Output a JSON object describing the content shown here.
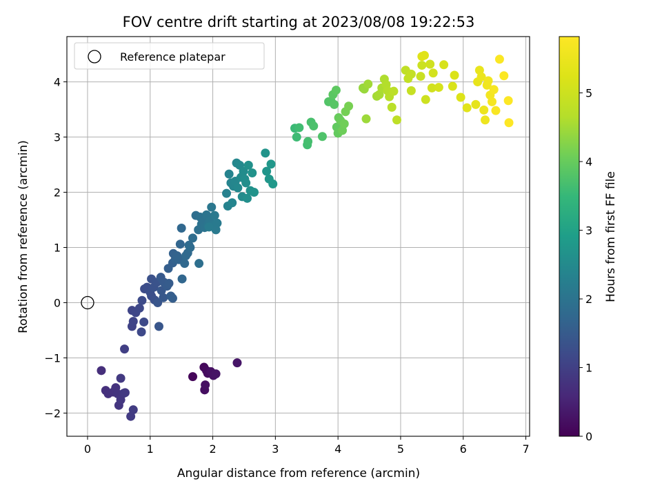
{
  "chart_data": {
    "type": "scatter",
    "title": "FOV centre drift starting at 2023/08/08 19:22:53",
    "xlabel": "Angular distance from reference (arcmin)",
    "ylabel": "Rotation from reference (arcmin)",
    "colorbar_label": "Hours from first FF file",
    "xlim": [
      -0.33,
      7.06
    ],
    "ylim": [
      -2.42,
      4.82
    ],
    "x_ticks": [
      0,
      1,
      2,
      3,
      4,
      5,
      6,
      7
    ],
    "y_ticks": [
      -2,
      -1,
      0,
      1,
      2,
      3,
      4
    ],
    "colorbar_ticks": [
      0,
      1,
      2,
      3,
      4,
      5
    ],
    "colorbar_range": [
      0,
      5.82
    ],
    "colormap": "viridis",
    "grid": true,
    "legend": {
      "placement": "top-left",
      "entries": [
        "Reference platepar"
      ]
    },
    "reference_point": {
      "x": 0,
      "y": 0
    },
    "points": [
      [
        1.68,
        -1.34,
        0.08
      ],
      [
        1.86,
        -1.17,
        0.12
      ],
      [
        1.9,
        -1.23,
        0.15
      ],
      [
        1.92,
        -1.28,
        0.18
      ],
      [
        1.87,
        -1.58,
        0.2
      ],
      [
        1.88,
        -1.49,
        0.22
      ],
      [
        1.97,
        -1.25,
        0.24
      ],
      [
        2.01,
        -1.32,
        0.26
      ],
      [
        2.05,
        -1.29,
        0.28
      ],
      [
        2.39,
        -1.09,
        0.3
      ],
      [
        0.22,
        -1.23,
        0.7
      ],
      [
        0.29,
        -1.59,
        0.72
      ],
      [
        0.33,
        -1.65,
        0.74
      ],
      [
        0.41,
        -1.62,
        0.76
      ],
      [
        0.45,
        -1.54,
        0.78
      ],
      [
        0.48,
        -1.65,
        0.8
      ],
      [
        0.5,
        -1.86,
        0.82
      ],
      [
        0.53,
        -1.76,
        0.84
      ],
      [
        0.58,
        -1.64,
        0.86
      ],
      [
        0.6,
        -1.63,
        0.88
      ],
      [
        0.53,
        -1.37,
        0.9
      ],
      [
        0.69,
        -2.06,
        0.92
      ],
      [
        0.73,
        -1.94,
        0.94
      ],
      [
        0.59,
        -0.84,
        0.98
      ],
      [
        0.71,
        -0.43,
        1.05
      ],
      [
        0.73,
        -0.34,
        1.08
      ],
      [
        0.71,
        -0.14,
        1.1
      ],
      [
        0.77,
        -0.18,
        1.12
      ],
      [
        0.83,
        -0.1,
        1.14
      ],
      [
        0.86,
        -0.53,
        1.16
      ],
      [
        0.9,
        -0.35,
        1.18
      ],
      [
        0.87,
        0.04,
        1.2
      ],
      [
        0.91,
        0.25,
        1.22
      ],
      [
        0.95,
        0.28,
        1.24
      ],
      [
        1.02,
        0.12,
        1.26
      ],
      [
        1.0,
        0.19,
        1.28
      ],
      [
        1.07,
        0.05,
        1.3
      ],
      [
        1.02,
        0.43,
        1.32
      ],
      [
        1.06,
        0.28,
        1.34
      ],
      [
        1.11,
        0.37,
        1.36
      ],
      [
        1.12,
        0.0,
        1.38
      ],
      [
        1.14,
        -0.43,
        1.4
      ],
      [
        1.18,
        0.22,
        1.42
      ],
      [
        1.21,
        0.09,
        1.44
      ],
      [
        1.17,
        0.46,
        1.46
      ],
      [
        1.22,
        0.37,
        1.48
      ],
      [
        1.27,
        0.3,
        1.5
      ],
      [
        1.3,
        0.35,
        1.52
      ],
      [
        1.33,
        0.12,
        1.54
      ],
      [
        1.36,
        0.08,
        1.56
      ],
      [
        1.29,
        0.62,
        1.58
      ],
      [
        1.36,
        0.72,
        1.6
      ],
      [
        1.37,
        0.89,
        1.62
      ],
      [
        1.4,
        0.78,
        1.64
      ],
      [
        1.43,
        0.85,
        1.66
      ],
      [
        1.46,
        0.78,
        1.68
      ],
      [
        1.48,
        1.06,
        1.7
      ],
      [
        1.51,
        0.43,
        1.72
      ],
      [
        1.5,
        1.35,
        1.74
      ],
      [
        1.55,
        0.71,
        1.76
      ],
      [
        1.57,
        0.85,
        1.78
      ],
      [
        1.6,
        0.9,
        1.8
      ],
      [
        1.62,
        1.04,
        1.82
      ],
      [
        1.64,
        1.0,
        1.84
      ],
      [
        1.68,
        1.17,
        1.86
      ],
      [
        1.73,
        1.58,
        1.88
      ],
      [
        1.78,
        0.71,
        1.9
      ],
      [
        1.77,
        1.32,
        1.92
      ],
      [
        1.8,
        1.55,
        1.94
      ],
      [
        1.82,
        1.42,
        1.96
      ],
      [
        1.84,
        1.46,
        1.98
      ],
      [
        1.87,
        1.36,
        2.0
      ],
      [
        1.9,
        1.59,
        2.02
      ],
      [
        1.92,
        1.4,
        2.04
      ],
      [
        1.95,
        1.48,
        2.06
      ],
      [
        1.98,
        1.73,
        2.08
      ],
      [
        2.0,
        1.41,
        2.1
      ],
      [
        2.03,
        1.58,
        2.12
      ],
      [
        2.05,
        1.32,
        2.14
      ],
      [
        2.07,
        1.44,
        2.16
      ],
      [
        1.94,
        1.37,
        2.18
      ],
      [
        2.22,
        1.98,
        2.3
      ],
      [
        2.24,
        1.75,
        2.32
      ],
      [
        2.26,
        2.33,
        2.34
      ],
      [
        2.29,
        2.17,
        2.36
      ],
      [
        2.31,
        1.81,
        2.38
      ],
      [
        2.33,
        2.11,
        2.4
      ],
      [
        2.36,
        2.2,
        2.42
      ],
      [
        2.38,
        2.53,
        2.44
      ],
      [
        2.4,
        2.08,
        2.46
      ],
      [
        2.43,
        2.49,
        2.48
      ],
      [
        2.45,
        2.27,
        2.5
      ],
      [
        2.47,
        1.92,
        2.52
      ],
      [
        2.49,
        2.38,
        2.54
      ],
      [
        2.51,
        2.24,
        2.56
      ],
      [
        2.53,
        2.17,
        2.58
      ],
      [
        2.55,
        1.89,
        2.6
      ],
      [
        2.57,
        2.49,
        2.62
      ],
      [
        2.6,
        2.03,
        2.64
      ],
      [
        2.63,
        2.35,
        2.66
      ],
      [
        2.66,
        2.0,
        2.68
      ],
      [
        2.84,
        2.71,
        2.7
      ],
      [
        2.86,
        2.38,
        2.72
      ],
      [
        2.9,
        2.24,
        2.74
      ],
      [
        2.93,
        2.51,
        2.76
      ],
      [
        2.96,
        2.15,
        2.78
      ],
      [
        3.31,
        3.16,
        3.55
      ],
      [
        3.34,
        3.0,
        3.58
      ],
      [
        3.38,
        3.17,
        3.61
      ],
      [
        3.51,
        2.86,
        3.64
      ],
      [
        3.52,
        2.92,
        3.67
      ],
      [
        3.57,
        3.27,
        3.7
      ],
      [
        3.61,
        3.2,
        3.73
      ],
      [
        3.75,
        3.01,
        3.76
      ],
      [
        3.85,
        3.64,
        3.79
      ],
      [
        3.89,
        3.65,
        3.82
      ],
      [
        3.94,
        3.59,
        3.85
      ],
      [
        3.92,
        3.77,
        3.88
      ],
      [
        3.97,
        3.85,
        3.91
      ],
      [
        3.98,
        3.18,
        3.94
      ],
      [
        4.0,
        3.07,
        3.97
      ],
      [
        4.01,
        3.35,
        4.0
      ],
      [
        4.04,
        3.3,
        4.03
      ],
      [
        4.07,
        3.12,
        4.06
      ],
      [
        4.1,
        3.24,
        4.09
      ],
      [
        4.12,
        3.46,
        4.12
      ],
      [
        4.17,
        3.56,
        4.15
      ],
      [
        4.4,
        3.89,
        4.4
      ],
      [
        4.42,
        3.87,
        4.43
      ],
      [
        4.45,
        3.33,
        4.46
      ],
      [
        4.48,
        3.96,
        4.49
      ],
      [
        4.62,
        3.74,
        4.52
      ],
      [
        4.66,
        3.77,
        4.55
      ],
      [
        4.7,
        3.89,
        4.58
      ],
      [
        4.74,
        4.05,
        4.61
      ],
      [
        4.77,
        3.95,
        4.64
      ],
      [
        4.79,
        3.84,
        4.67
      ],
      [
        4.82,
        3.73,
        4.7
      ],
      [
        4.86,
        3.54,
        4.73
      ],
      [
        4.89,
        3.83,
        4.76
      ],
      [
        4.94,
        3.31,
        4.79
      ],
      [
        5.08,
        4.21,
        4.82
      ],
      [
        5.12,
        4.06,
        4.85
      ],
      [
        5.17,
        4.14,
        4.88
      ],
      [
        5.17,
        3.84,
        4.91
      ],
      [
        5.32,
        4.1,
        4.94
      ],
      [
        5.34,
        4.3,
        4.97
      ],
      [
        5.4,
        3.68,
        5.0
      ],
      [
        5.47,
        4.32,
        5.03
      ],
      [
        5.5,
        3.89,
        5.06
      ],
      [
        5.52,
        4.16,
        5.09
      ],
      [
        5.61,
        3.9,
        5.12
      ],
      [
        5.69,
        4.31,
        5.15
      ],
      [
        5.83,
        3.92,
        5.18
      ],
      [
        5.86,
        4.12,
        5.21
      ],
      [
        5.96,
        3.72,
        5.24
      ],
      [
        5.34,
        4.46,
        5.27
      ],
      [
        5.38,
        4.48,
        5.3
      ],
      [
        6.06,
        3.53,
        5.33
      ],
      [
        6.2,
        3.59,
        5.4
      ],
      [
        6.23,
        4.0,
        5.43
      ],
      [
        6.26,
        4.21,
        5.46
      ],
      [
        6.29,
        4.09,
        5.49
      ],
      [
        6.33,
        3.49,
        5.52
      ],
      [
        6.35,
        3.31,
        5.55
      ],
      [
        6.38,
        3.94,
        5.58
      ],
      [
        6.4,
        4.02,
        5.61
      ],
      [
        6.43,
        3.76,
        5.64
      ],
      [
        6.46,
        3.64,
        5.67
      ],
      [
        6.49,
        3.86,
        5.7
      ],
      [
        6.52,
        3.48,
        5.73
      ],
      [
        6.58,
        4.41,
        5.76
      ],
      [
        6.65,
        4.11,
        5.79
      ],
      [
        6.72,
        3.66,
        5.81
      ],
      [
        6.73,
        3.26,
        5.82
      ]
    ]
  }
}
